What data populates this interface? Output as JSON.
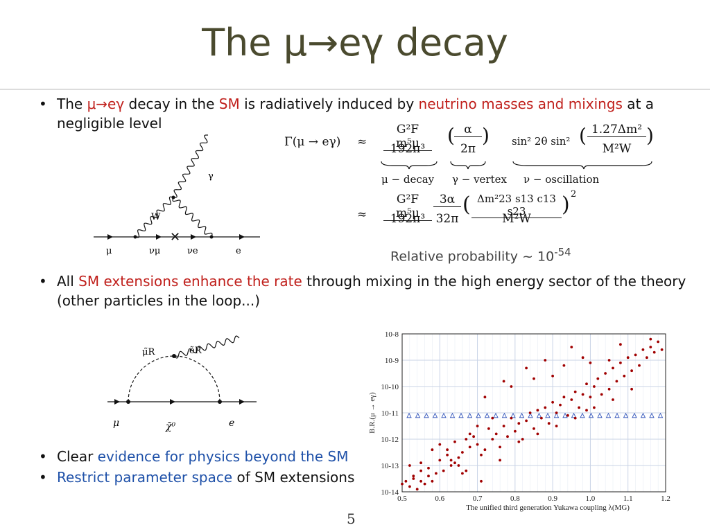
{
  "slide": {
    "title": "The μ→eγ decay",
    "page_number": "5"
  },
  "bullets": [
    {
      "parts": [
        {
          "text": "The ",
          "style": "plain"
        },
        {
          "text": "μ→eγ",
          "style": "red"
        },
        {
          "text": " decay in the ",
          "style": "plain"
        },
        {
          "text": "SM",
          "style": "red"
        },
        {
          "text": " is radiatively induced by ",
          "style": "plain"
        },
        {
          "text": "neutrino masses and mixings",
          "style": "red"
        },
        {
          "text": " at a",
          "style": "plain"
        }
      ],
      "line2": "negligible level"
    },
    {
      "parts": [
        {
          "text": "All ",
          "style": "plain"
        },
        {
          "text": "SM extensions enhance the rate",
          "style": "red"
        },
        {
          "text": " through mixing in the high energy sector of the theory",
          "style": "plain"
        }
      ],
      "line2": "(other particles in the loop...)"
    },
    {
      "parts": [
        {
          "text": "Clear ",
          "style": "plain"
        },
        {
          "text": "evidence for physics beyond the SM",
          "style": "blue"
        }
      ]
    },
    {
      "parts": [
        {
          "text": "Restrict parameter space",
          "style": "blue"
        },
        {
          "text": " of SM extensions",
          "style": "plain"
        }
      ]
    }
  ],
  "formula": {
    "lhs": "Γ(μ → eγ)",
    "approx": "≈",
    "term1_num": "G²F m⁵μ",
    "term1_den": "192π³",
    "term2_num": "α",
    "term2_den": "2π",
    "term3_prefix": "sin² 2θ sin²",
    "term3_num": "1.27Δm²",
    "term3_den": "M²W",
    "brace_label1": "μ − decay",
    "brace_label2": "γ − vertex",
    "brace_label3": "ν − oscillation",
    "line2_num1": "G²F m⁵μ",
    "line2_den1": "192π³",
    "line2_num2": "3α",
    "line2_den2": "32π",
    "line2_num3": "Δm²23 s13 c13 s23",
    "line2_den3": "M²W",
    "line2_exp": "2"
  },
  "relative_probability": {
    "label": "Relative probability ~ 10",
    "exponent": "-54"
  },
  "sm_diagram": {
    "labels": {
      "gamma": "γ",
      "W": "W",
      "mu": "μ",
      "nu_mu": "νμ",
      "nu_e": "νe",
      "e": "e"
    }
  },
  "susy_diagram": {
    "labels": {
      "mu_R": "μ̃R",
      "e_R": "ẽR",
      "mu": "μ",
      "chi": "χ̃⁰",
      "e": "e"
    }
  },
  "chart_data": {
    "type": "scatter",
    "xlabel": "The unified third generation Yukawa coupling λ(MG)",
    "ylabel": "B.R.(μ → eγ)",
    "xlim": [
      0.5,
      1.2
    ],
    "ylim_log10": [
      -14,
      -8
    ],
    "log_y": true,
    "grid": true,
    "x_ticks": [
      "0.5",
      "0.6",
      "0.7",
      "0.8",
      "0.9",
      "1.0",
      "1.1",
      "1.2"
    ],
    "y_ticks": [
      "10-14",
      "10-13",
      "10-12",
      "10-11",
      "10-10",
      "10-9",
      "10-8"
    ],
    "limit_line": {
      "log10_value": -11.1,
      "marker": "triangle",
      "color": "#3355bb"
    },
    "points_color": "#a00000",
    "series": [
      {
        "points_log10": [
          [
            0.5,
            -13.7
          ],
          [
            0.51,
            -13.6
          ],
          [
            0.52,
            -13.8
          ],
          [
            0.53,
            -13.5
          ],
          [
            0.54,
            -13.9
          ],
          [
            0.55,
            -13.6
          ],
          [
            0.56,
            -13.7
          ],
          [
            0.57,
            -13.4
          ],
          [
            0.58,
            -13.6
          ],
          [
            0.59,
            -13.3
          ],
          [
            0.52,
            -13.0
          ],
          [
            0.55,
            -12.9
          ],
          [
            0.57,
            -13.1
          ],
          [
            0.6,
            -12.8
          ],
          [
            0.61,
            -13.2
          ],
          [
            0.62,
            -12.6
          ],
          [
            0.63,
            -13.0
          ],
          [
            0.64,
            -12.9
          ],
          [
            0.65,
            -12.7
          ],
          [
            0.66,
            -13.3
          ],
          [
            0.6,
            -12.2
          ],
          [
            0.62,
            -12.4
          ],
          [
            0.64,
            -12.1
          ],
          [
            0.66,
            -12.5
          ],
          [
            0.67,
            -12.0
          ],
          [
            0.68,
            -12.3
          ],
          [
            0.69,
            -11.9
          ],
          [
            0.7,
            -12.2
          ],
          [
            0.71,
            -12.6
          ],
          [
            0.72,
            -12.4
          ],
          [
            0.73,
            -11.6
          ],
          [
            0.74,
            -12.0
          ],
          [
            0.75,
            -11.8
          ],
          [
            0.76,
            -12.3
          ],
          [
            0.77,
            -11.5
          ],
          [
            0.78,
            -11.9
          ],
          [
            0.79,
            -11.2
          ],
          [
            0.8,
            -11.7
          ],
          [
            0.81,
            -11.4
          ],
          [
            0.82,
            -12.0
          ],
          [
            0.83,
            -11.3
          ],
          [
            0.84,
            -11.0
          ],
          [
            0.85,
            -11.6
          ],
          [
            0.86,
            -10.9
          ],
          [
            0.87,
            -11.2
          ],
          [
            0.88,
            -10.8
          ],
          [
            0.89,
            -11.4
          ],
          [
            0.9,
            -10.6
          ],
          [
            0.91,
            -11.0
          ],
          [
            0.92,
            -10.7
          ],
          [
            0.93,
            -10.4
          ],
          [
            0.94,
            -11.1
          ],
          [
            0.95,
            -10.5
          ],
          [
            0.96,
            -10.2
          ],
          [
            0.97,
            -10.8
          ],
          [
            0.98,
            -10.3
          ],
          [
            0.99,
            -9.9
          ],
          [
            1.0,
            -10.4
          ],
          [
            1.01,
            -10.0
          ],
          [
            1.02,
            -9.7
          ],
          [
            1.03,
            -10.3
          ],
          [
            1.04,
            -9.5
          ],
          [
            1.05,
            -10.1
          ],
          [
            1.06,
            -9.3
          ],
          [
            1.07,
            -9.8
          ],
          [
            1.08,
            -9.1
          ],
          [
            1.09,
            -9.6
          ],
          [
            1.1,
            -8.9
          ],
          [
            1.11,
            -9.4
          ],
          [
            1.12,
            -8.8
          ],
          [
            1.13,
            -9.2
          ],
          [
            1.14,
            -8.6
          ],
          [
            1.15,
            -8.9
          ],
          [
            1.16,
            -8.5
          ],
          [
            1.17,
            -8.7
          ],
          [
            1.18,
            -8.3
          ],
          [
            1.19,
            -8.6
          ],
          [
            0.77,
            -9.8
          ],
          [
            0.83,
            -9.3
          ],
          [
            0.88,
            -9.0
          ],
          [
            0.95,
            -8.5
          ],
          [
            0.98,
            -8.9
          ],
          [
            0.72,
            -10.4
          ],
          [
            0.79,
            -10.0
          ],
          [
            0.85,
            -9.7
          ],
          [
            0.7,
            -11.5
          ],
          [
            0.68,
            -11.8
          ],
          [
            0.74,
            -11.2
          ],
          [
            0.9,
            -9.6
          ],
          [
            1.05,
            -9.0
          ],
          [
            0.58,
            -12.4
          ],
          [
            0.63,
            -12.8
          ],
          [
            0.67,
            -13.2
          ],
          [
            0.71,
            -13.6
          ],
          [
            0.65,
            -13.0
          ],
          [
            0.55,
            -13.2
          ],
          [
            0.53,
            -13.4
          ],
          [
            0.76,
            -12.8
          ],
          [
            0.81,
            -12.1
          ],
          [
            0.86,
            -11.8
          ],
          [
            0.91,
            -11.5
          ],
          [
            0.96,
            -11.2
          ],
          [
            1.01,
            -10.8
          ],
          [
            1.06,
            -10.5
          ],
          [
            1.11,
            -10.1
          ],
          [
            0.93,
            -9.2
          ],
          [
            1.0,
            -9.1
          ],
          [
            1.08,
            -8.4
          ],
          [
            1.16,
            -8.2
          ],
          [
            0.99,
            -10.9
          ]
        ]
      }
    ]
  }
}
